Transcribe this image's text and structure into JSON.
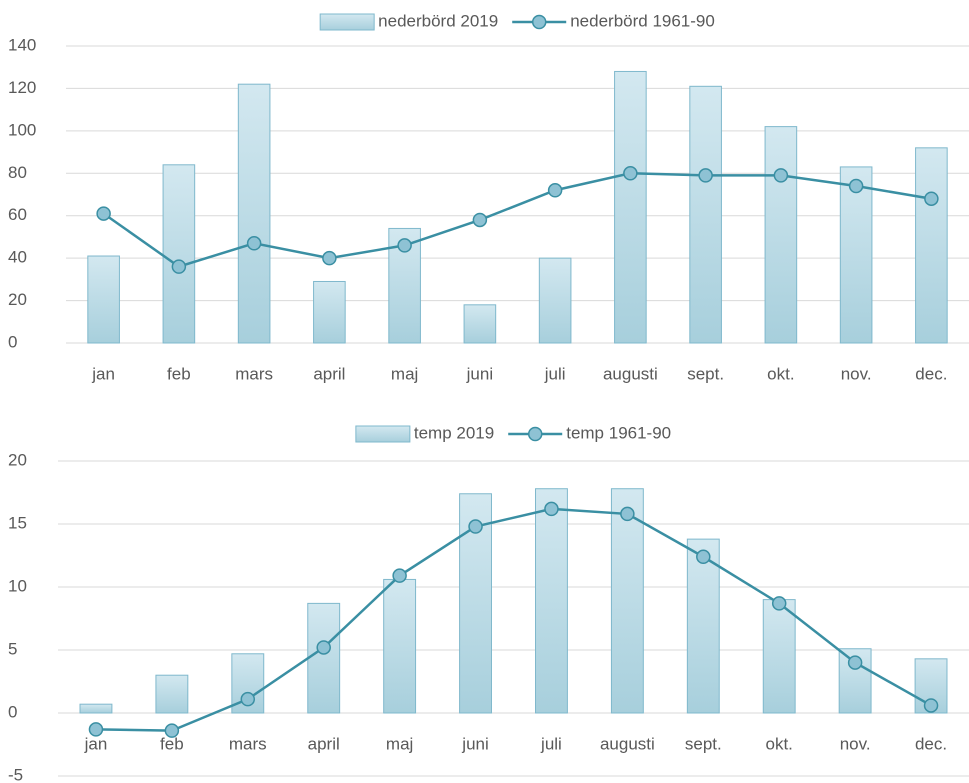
{
  "chart_data": [
    {
      "type": "bar",
      "categories": [
        "jan",
        "feb",
        "mars",
        "april",
        "maj",
        "juni",
        "juli",
        "augusti",
        "sept.",
        "okt.",
        "nov.",
        "dec."
      ],
      "series": [
        {
          "name": "nederbörd 2019",
          "type": "bar",
          "color": "#b8d9e5",
          "values": [
            41,
            84,
            122,
            29,
            54,
            18,
            40,
            128,
            121,
            102,
            83,
            92
          ]
        },
        {
          "name": "nederbörd 1961-90",
          "type": "line",
          "color": "#3a8fa3",
          "values": [
            61,
            36,
            47,
            40,
            46,
            58,
            72,
            80,
            79,
            79,
            74,
            68
          ]
        }
      ],
      "ylim": [
        0,
        140
      ],
      "yticks": [
        0,
        20,
        40,
        60,
        80,
        100,
        120,
        140
      ],
      "grid": true,
      "legend": "top"
    },
    {
      "type": "bar",
      "categories": [
        "jan",
        "feb",
        "mars",
        "april",
        "maj",
        "juni",
        "juli",
        "augusti",
        "sept.",
        "okt.",
        "nov.",
        "dec."
      ],
      "series": [
        {
          "name": "temp 2019",
          "type": "bar",
          "color": "#b8d9e5",
          "values": [
            0.7,
            3.0,
            4.7,
            8.7,
            10.6,
            17.4,
            17.8,
            17.8,
            13.8,
            9.0,
            5.1,
            4.3
          ]
        },
        {
          "name": "temp 1961-90",
          "type": "line",
          "color": "#3a8fa3",
          "values": [
            -1.3,
            -1.4,
            1.1,
            5.2,
            10.9,
            14.8,
            16.2,
            15.8,
            12.4,
            8.7,
            4.0,
            0.6
          ]
        }
      ],
      "ylim": [
        -5,
        20
      ],
      "yticks": [
        -5,
        0,
        5,
        10,
        15,
        20
      ],
      "grid": true,
      "legend": "top"
    }
  ]
}
